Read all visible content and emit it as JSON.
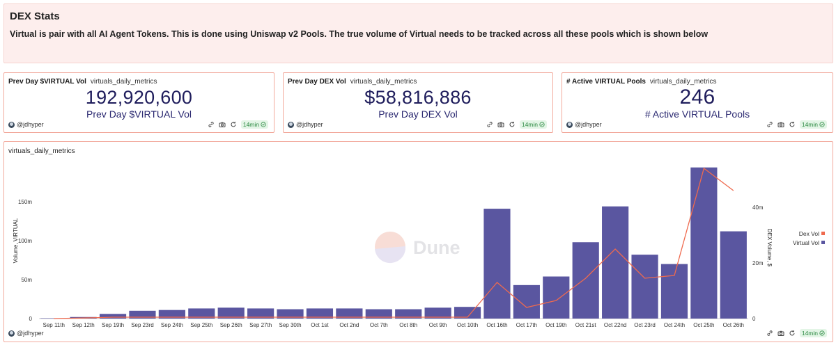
{
  "dashboard": {
    "text_card": {
      "title": "DEX Stats",
      "body": "Virtual is pair with all AI Agent Tokens. This is done using Uniswap v2 Pools. The true volume of Virtual needs to be tracked across all these pools which is shown below"
    },
    "counters": [
      {
        "title": "Prev Day $VIRTUAL Vol",
        "query": "virtuals_daily_metrics",
        "value": "192,920,600",
        "label": "Prev Day $VIRTUAL Vol",
        "author": "@jdhyper",
        "age": "14min"
      },
      {
        "title": "Prev Day DEX Vol",
        "query": "virtuals_daily_metrics",
        "value": "$58,816,886",
        "label": "Prev Day DEX Vol",
        "author": "@jdhyper",
        "age": "14min"
      },
      {
        "title": "# Active VIRTUAL Pools",
        "query": "virtuals_daily_metrics",
        "value": "246",
        "label": "# Active VIRTUAL Pools",
        "author": "@jdhyper",
        "age": "14min"
      }
    ],
    "chart_card": {
      "title": "virtuals_daily_metrics",
      "author": "@jdhyper",
      "age": "14min",
      "watermark": "Dune"
    },
    "icons": {
      "link": "link-icon",
      "camera": "camera-icon",
      "refresh": "refresh-icon",
      "check": "check-circle-icon",
      "avatar": "avatar-icon"
    },
    "colors": {
      "bar": "#5a56a0",
      "line": "#ef6a4e",
      "card_border": "#f2a99c",
      "text_bg": "#fdeeed",
      "accent_green": "#2d8a43"
    }
  },
  "chart_data": {
    "type": "bar",
    "categories": [
      "Sep 11th",
      "Sep 12th",
      "Sep 19th",
      "Sep 23rd",
      "Sep 24th",
      "Sep 25th",
      "Sep 26th",
      "Sep 27th",
      "Sep 30th",
      "Oct 1st",
      "Oct 2nd",
      "Oct 7th",
      "Oct 8th",
      "Oct 9th",
      "Oct 10th",
      "Oct 16th",
      "Oct 17th",
      "Oct 19th",
      "Oct 21st",
      "Oct 22nd",
      "Oct 23rd",
      "Oct 24th",
      "Oct 25th",
      "Oct 26th"
    ],
    "series": [
      {
        "name": "Virtual Vol",
        "axis": "left",
        "type": "bar",
        "values": [
          0.5,
          2,
          6,
          10,
          11,
          13,
          14,
          13,
          12,
          13,
          13,
          12,
          12,
          14,
          15,
          141,
          43,
          54,
          98,
          144,
          82,
          70,
          194,
          112
        ]
      },
      {
        "name": "Dex Vol",
        "axis": "right",
        "type": "line",
        "values": [
          0,
          0.2,
          0.5,
          0.5,
          0.5,
          0.5,
          0.5,
          0.5,
          0.5,
          0.5,
          0.5,
          0.5,
          0.5,
          0.5,
          0.5,
          13,
          4,
          6.5,
          14.5,
          25,
          14.5,
          15.5,
          54,
          46
        ]
      }
    ],
    "y_left": {
      "label": "Volume, VIRTUAL",
      "ticks": [
        "0",
        "50m",
        "100m",
        "150m"
      ],
      "range": [
        0,
        200
      ]
    },
    "y_right": {
      "label": "DEX Volume, $",
      "ticks": [
        "0",
        "20m",
        "40m"
      ],
      "range": [
        0,
        56
      ]
    },
    "legend": {
      "entries": [
        "Dex Vol",
        "Virtual Vol"
      ],
      "placement": "right"
    },
    "grid": false
  }
}
